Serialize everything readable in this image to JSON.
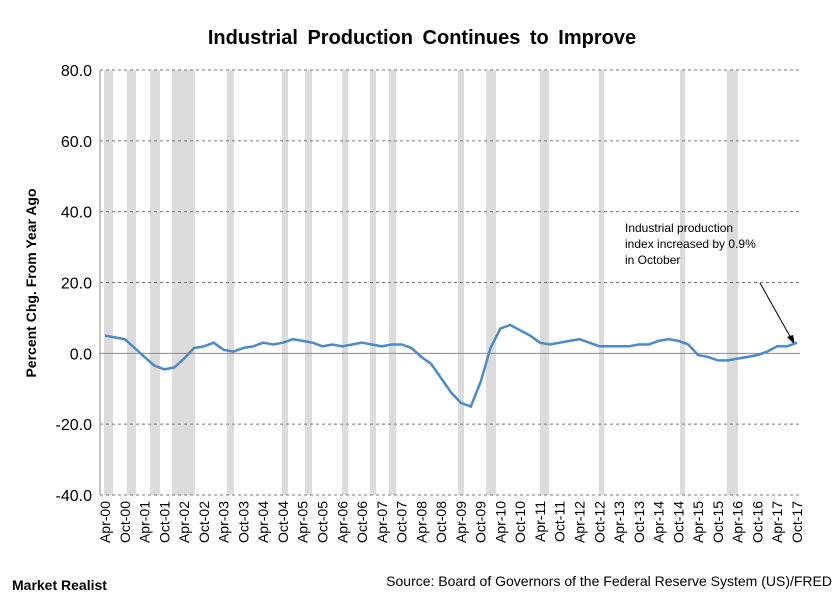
{
  "chart_data": {
    "type": "line",
    "title": "Industrial Production Continues to Improve",
    "y_label": "Percent Chg. From Year Ago",
    "annotation": [
      "Industrial production",
      "index increased by 0.9%",
      "in October"
    ],
    "source": "Source: Board of Governors of the Federal Reserve System (US)/FRED",
    "brand": "Market Realist",
    "categories": [
      "Apr-00",
      null,
      "Oct-00",
      null,
      "Apr-01",
      null,
      "Oct-01",
      null,
      "Apr-02",
      null,
      "Oct-02",
      null,
      "Apr-03",
      null,
      "Oct-03",
      null,
      "Apr-04",
      null,
      "Oct-04",
      null,
      "Apr-05",
      null,
      "Oct-05",
      null,
      "Apr-06",
      null,
      "Oct-06",
      null,
      "Apr-07",
      null,
      "Oct-07",
      null,
      "Apr-08",
      null,
      "Oct-08",
      null,
      "Apr-09",
      null,
      "Oct-09",
      null,
      "Apr-10",
      null,
      "Oct-10",
      null,
      "Apr-11",
      null,
      "Oct-11",
      null,
      "Apr-12",
      null,
      "Oct-12",
      null,
      "Apr-13",
      null,
      "Oct-13",
      null,
      "Apr-14",
      null,
      "Oct-14",
      null,
      "Apr-15",
      null,
      "Oct-15",
      null,
      "Apr-16",
      null,
      "Oct-16",
      null,
      "Apr-17",
      null,
      "Oct-17"
    ],
    "series": [
      {
        "name": "Industrial production",
        "color": "#4a8ac9",
        "values": [
          5,
          4.5,
          4,
          1.5,
          -1,
          -3.5,
          -4.5,
          -4,
          -1.5,
          1.5,
          2,
          3,
          1,
          0.5,
          1.5,
          2,
          3,
          2.5,
          3,
          4,
          3.5,
          3,
          2,
          2.5,
          2,
          2.5,
          3,
          2.5,
          2,
          2.5,
          2.5,
          1.5,
          -1,
          -3,
          -7,
          -11,
          -14,
          -15,
          -8,
          1.5,
          7,
          8,
          6.5,
          5,
          3,
          2.5,
          3,
          3.5,
          4,
          3,
          2,
          2,
          2,
          2,
          2.5,
          2.5,
          3.5,
          4,
          3.5,
          2.5,
          -0.5,
          -1,
          -2,
          -2,
          -1.5,
          -1,
          -0.5,
          0.5,
          2,
          2,
          3
        ]
      }
    ],
    "ylim": [
      -40,
      80
    ],
    "yticks": [
      {
        "value": -40,
        "label": "-40.0"
      },
      {
        "value": -20,
        "label": "-20.0"
      },
      {
        "value": 0,
        "label": "0.0"
      },
      {
        "value": 20,
        "label": "20.0"
      },
      {
        "value": 40,
        "label": "40.0"
      },
      {
        "value": 60,
        "label": "60.0"
      },
      {
        "value": 80,
        "label": "80.0"
      }
    ],
    "grid": true
  }
}
